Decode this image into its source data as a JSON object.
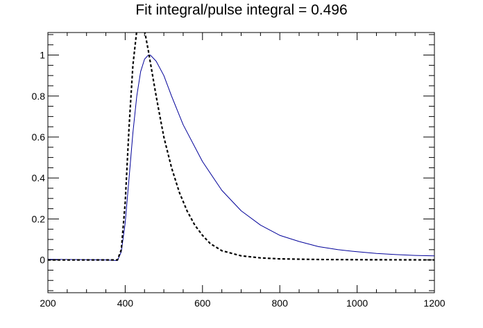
{
  "chart_data": {
    "type": "line",
    "title": "Fit integral/pulse integral = 0.496",
    "xlabel": "",
    "ylabel": "",
    "xlim": [
      200,
      1200
    ],
    "ylim": [
      -0.16,
      1.11
    ],
    "x_ticks": [
      200,
      400,
      600,
      800,
      1000,
      1200
    ],
    "y_ticks": [
      0,
      0.2,
      0.4,
      0.6,
      0.8,
      1
    ],
    "x_tick_labels": [
      "200",
      "400",
      "600",
      "800",
      "1000",
      "1200"
    ],
    "y_tick_labels": [
      "0",
      "0.2",
      "0.4",
      "0.6",
      "0.8",
      "1"
    ],
    "grid": false,
    "series": [
      {
        "style": "solid",
        "color": "#000099",
        "x": [
          200,
          250,
          300,
          350,
          380,
          390,
          400,
          410,
          420,
          430,
          440,
          450,
          460,
          465,
          470,
          480,
          500,
          520,
          550,
          600,
          650,
          700,
          750,
          800,
          850,
          900,
          950,
          1000,
          1050,
          1100,
          1150,
          1200
        ],
        "y": [
          0.003,
          0.002,
          0.001,
          0.0,
          -0.003,
          0.04,
          0.18,
          0.4,
          0.62,
          0.8,
          0.92,
          0.98,
          1.0,
          1.0,
          0.99,
          0.97,
          0.9,
          0.8,
          0.66,
          0.48,
          0.34,
          0.24,
          0.17,
          0.12,
          0.09,
          0.065,
          0.05,
          0.04,
          0.032,
          0.026,
          0.022,
          0.02
        ]
      },
      {
        "style": "dashed",
        "color": "#000000",
        "x": [
          200,
          300,
          350,
          380,
          390,
          400,
          410,
          420,
          430,
          440,
          450,
          460,
          470,
          480,
          490,
          500,
          520,
          540,
          560,
          580,
          600,
          620,
          650,
          700,
          750,
          800,
          900,
          1000,
          1200
        ],
        "y": [
          0.0,
          0.0,
          0.0,
          0.0,
          0.05,
          0.28,
          0.65,
          0.95,
          1.12,
          1.2,
          1.12,
          1.02,
          0.91,
          0.8,
          0.7,
          0.6,
          0.45,
          0.33,
          0.24,
          0.17,
          0.12,
          0.08,
          0.045,
          0.02,
          0.01,
          0.005,
          0.002,
          0.001,
          0.0
        ]
      }
    ]
  }
}
